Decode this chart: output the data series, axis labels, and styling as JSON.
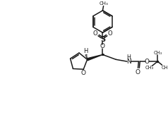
{
  "bg_color": "#ffffff",
  "line_color": "#1a1a1a",
  "lw": 1.1,
  "fig_width": 2.38,
  "fig_height": 1.63,
  "dpi": 100,
  "xlim": [
    0,
    10
  ],
  "ylim": [
    0,
    7
  ]
}
